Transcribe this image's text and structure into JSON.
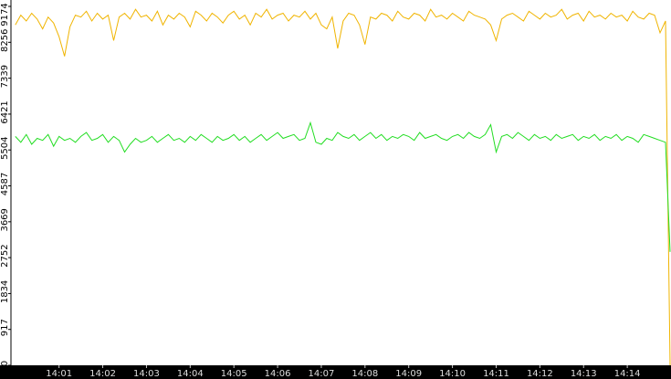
{
  "chart_data": {
    "type": "line",
    "x": [
      840,
      840.125,
      840.25,
      840.375,
      840.5,
      840.625,
      840.75,
      840.875,
      841,
      841.125,
      841.25,
      841.375,
      841.5,
      841.625,
      841.75,
      841.875,
      842,
      842.125,
      842.25,
      842.375,
      842.5,
      842.625,
      842.75,
      842.875,
      843,
      843.125,
      843.25,
      843.375,
      843.5,
      843.625,
      843.75,
      843.875,
      844,
      844.125,
      844.25,
      844.375,
      844.5,
      844.625,
      844.75,
      844.875,
      845,
      845.125,
      845.25,
      845.375,
      845.5,
      845.625,
      845.75,
      845.875,
      846,
      846.125,
      846.25,
      846.375,
      846.5,
      846.625,
      846.75,
      846.875,
      847,
      847.125,
      847.25,
      847.375,
      847.5,
      847.625,
      847.75,
      847.875,
      848,
      848.125,
      848.25,
      848.375,
      848.5,
      848.625,
      848.75,
      848.875,
      849,
      849.125,
      849.25,
      849.375,
      849.5,
      849.625,
      849.75,
      849.875,
      850,
      850.125,
      850.25,
      850.375,
      850.5,
      850.625,
      850.75,
      850.875,
      851,
      851.125,
      851.25,
      851.375,
      851.5,
      851.625,
      851.75,
      851.875,
      852,
      852.125,
      852.25,
      852.375,
      852.5,
      852.625,
      852.75,
      852.875,
      853,
      853.125,
      853.25,
      853.375,
      853.5,
      853.625,
      853.75,
      853.875,
      854,
      854.125,
      854.25,
      854.375,
      854.5,
      854.625,
      854.75,
      854.875,
      854.98
    ],
    "series": [
      {
        "color": "#f0b400",
        "values": [
          8700,
          8950,
          8800,
          9000,
          8850,
          8600,
          8900,
          8750,
          8400,
          7900,
          8650,
          8950,
          8900,
          9050,
          8800,
          9000,
          8850,
          8950,
          8300,
          8900,
          9000,
          8850,
          9100,
          8900,
          8950,
          8800,
          9050,
          8700,
          8950,
          8850,
          9000,
          8900,
          8650,
          9050,
          8950,
          8800,
          9000,
          8900,
          8750,
          8950,
          9050,
          8850,
          8950,
          8700,
          9000,
          8900,
          9100,
          8850,
          8950,
          9000,
          8800,
          8950,
          8900,
          9050,
          8850,
          9000,
          8700,
          8600,
          8900,
          8100,
          8800,
          9000,
          8950,
          8700,
          8200,
          8900,
          8850,
          9000,
          8950,
          8800,
          9050,
          8900,
          8850,
          9000,
          8950,
          8800,
          9100,
          8900,
          8950,
          8850,
          9000,
          8900,
          8800,
          9050,
          8950,
          8900,
          8850,
          8700,
          8300,
          8850,
          8950,
          9000,
          8900,
          8800,
          9050,
          8950,
          8850,
          9000,
          8900,
          8950,
          9100,
          8850,
          8950,
          9000,
          8800,
          9050,
          8900,
          8950,
          8850,
          9000,
          8900,
          8950,
          8800,
          9050,
          8900,
          8850,
          9000,
          8950,
          8500,
          8800,
          0
        ]
      },
      {
        "color": "#22dd22",
        "values": [
          5850,
          5700,
          5900,
          5650,
          5800,
          5750,
          5900,
          5600,
          5850,
          5750,
          5800,
          5700,
          5850,
          5950,
          5750,
          5800,
          5900,
          5700,
          5850,
          5750,
          5450,
          5650,
          5800,
          5700,
          5750,
          5850,
          5700,
          5800,
          5900,
          5750,
          5800,
          5700,
          5850,
          5750,
          5900,
          5800,
          5700,
          5850,
          5750,
          5800,
          5900,
          5750,
          5850,
          5700,
          5800,
          5900,
          5750,
          5850,
          5950,
          5800,
          5850,
          5900,
          5750,
          5800,
          6200,
          5700,
          5650,
          5800,
          5750,
          5950,
          5850,
          5800,
          5900,
          5750,
          5850,
          5950,
          5800,
          5900,
          5750,
          5850,
          5800,
          5900,
          5850,
          5750,
          5950,
          5800,
          5850,
          5900,
          5800,
          5750,
          5850,
          5900,
          5800,
          5950,
          5850,
          5800,
          5900,
          6150,
          5450,
          5850,
          5900,
          5800,
          5950,
          5850,
          5750,
          5900,
          5800,
          5850,
          5750,
          5900,
          5800,
          5850,
          5900,
          5750,
          5850,
          5800,
          5900,
          5750,
          5850,
          5800,
          5900,
          5750,
          5850,
          5800,
          5700,
          5900,
          5850,
          5800,
          5750,
          5700,
          2900
        ]
      }
    ],
    "ylim": [
      0,
      9174
    ],
    "yticks": [
      0,
      917,
      1834,
      2752,
      3669,
      4587,
      5504,
      6421,
      7339,
      8256,
      9174
    ],
    "xlim": [
      839.9,
      855
    ],
    "xticks": [
      {
        "value": 841,
        "label": "14:01"
      },
      {
        "value": 842,
        "label": "14:02"
      },
      {
        "value": 843,
        "label": "14:03"
      },
      {
        "value": 844,
        "label": "14:04"
      },
      {
        "value": 845,
        "label": "14:05"
      },
      {
        "value": 846,
        "label": "14:06"
      },
      {
        "value": 847,
        "label": "14:07"
      },
      {
        "value": 848,
        "label": "14:08"
      },
      {
        "value": 849,
        "label": "14:09"
      },
      {
        "value": 850,
        "label": "14:10"
      },
      {
        "value": 851,
        "label": "14:11"
      },
      {
        "value": 852,
        "label": "14:12"
      },
      {
        "value": 853,
        "label": "14:13"
      },
      {
        "value": 854,
        "label": "14:14"
      }
    ]
  }
}
